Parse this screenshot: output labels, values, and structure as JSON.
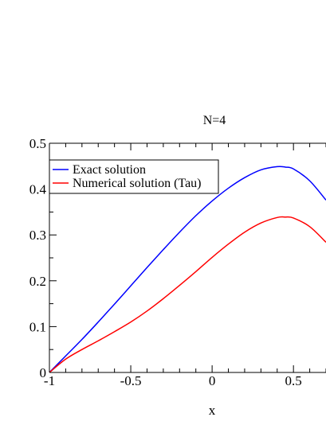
{
  "chart_data": {
    "type": "line",
    "title": "N=4",
    "xlabel": "x",
    "ylabel": "",
    "xlim": [
      -1,
      0.7
    ],
    "ylim": [
      0,
      0.5
    ],
    "x_ticks": [
      -1,
      -0.5,
      0,
      0.5
    ],
    "x_tick_labels": [
      "-1",
      "-0.5",
      "0",
      "0.5"
    ],
    "y_ticks": [
      0,
      0.1,
      0.2,
      0.3,
      0.4,
      0.5
    ],
    "y_tick_labels": [
      "0",
      "0.1",
      "0.2",
      "0.3",
      "0.4",
      "0.5"
    ],
    "grid": false,
    "legend_position": "top-left",
    "series": [
      {
        "name": "Exact solution",
        "color": "#0000ff",
        "x": [
          -1,
          -0.9,
          -0.8,
          -0.7,
          -0.6,
          -0.5,
          -0.4,
          -0.3,
          -0.2,
          -0.1,
          0,
          0.1,
          0.2,
          0.3,
          0.4,
          0.45,
          0.5,
          0.6,
          0.7
        ],
        "y": [
          0,
          0.036,
          0.072,
          0.11,
          0.149,
          0.189,
          0.229,
          0.268,
          0.306,
          0.342,
          0.374,
          0.402,
          0.425,
          0.442,
          0.449,
          0.448,
          0.444,
          0.418,
          0.376
        ]
      },
      {
        "name": "Numerical solution (Tau)",
        "color": "#ff0000",
        "x": [
          -1,
          -0.9,
          -0.8,
          -0.7,
          -0.6,
          -0.5,
          -0.4,
          -0.3,
          -0.2,
          -0.1,
          0,
          0.1,
          0.2,
          0.3,
          0.4,
          0.45,
          0.5,
          0.6,
          0.7
        ],
        "y": [
          0,
          0.029,
          0.05,
          0.069,
          0.089,
          0.11,
          0.134,
          0.161,
          0.19,
          0.22,
          0.251,
          0.28,
          0.306,
          0.326,
          0.338,
          0.339,
          0.337,
          0.318,
          0.284
        ]
      }
    ]
  }
}
